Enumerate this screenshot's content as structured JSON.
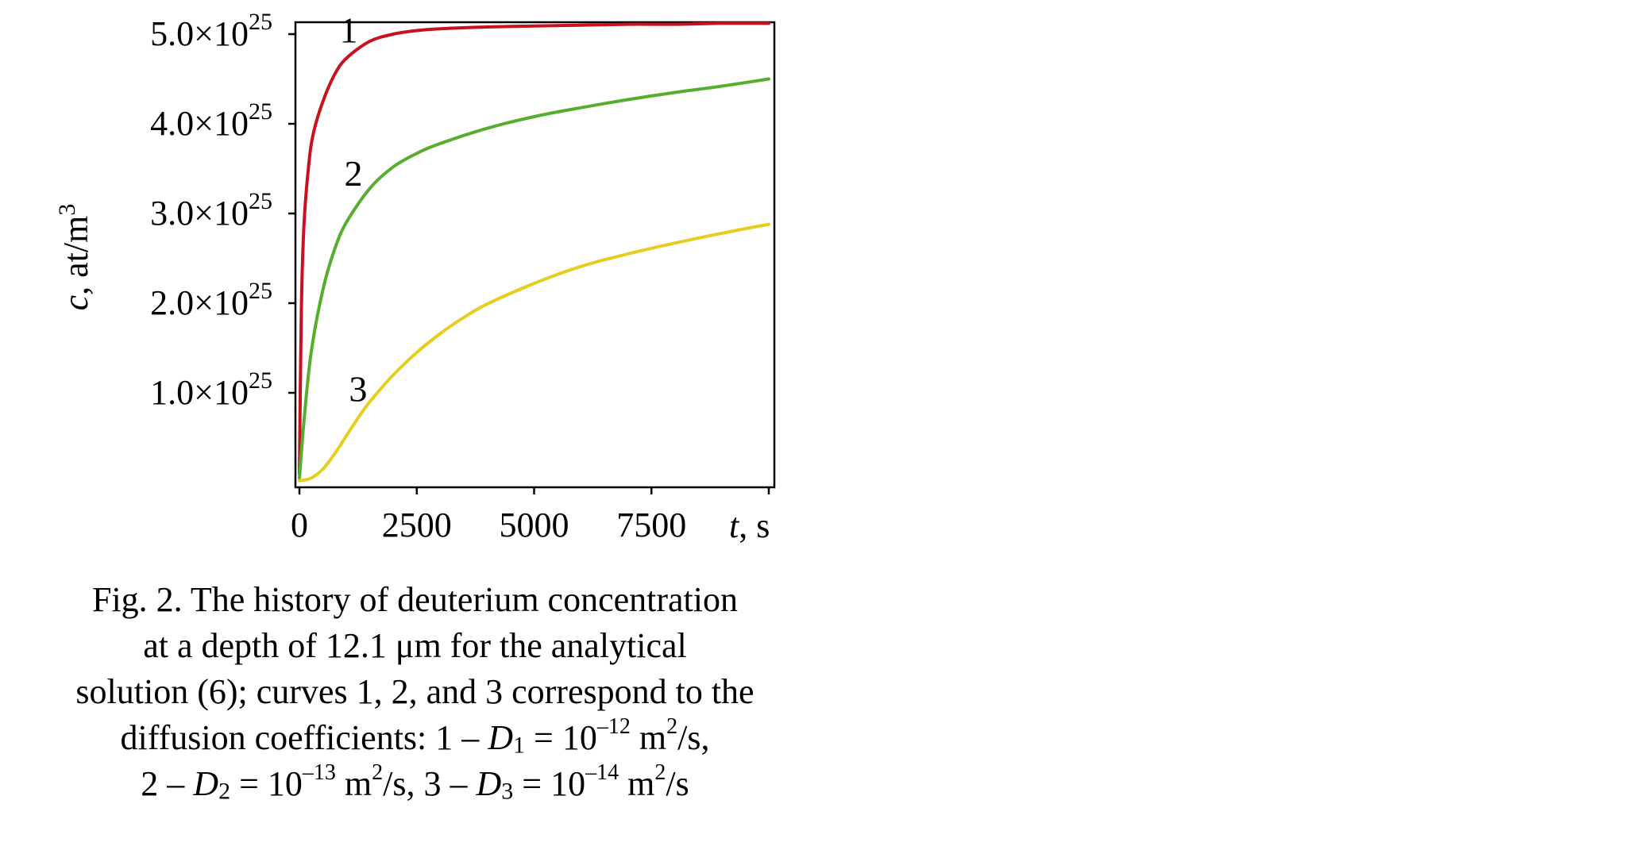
{
  "chart_data": {
    "type": "line",
    "ylabel": {
      "var": "c",
      "unit": ", at/m",
      "unit_exp": "3"
    },
    "xlabel": {
      "var": "t",
      "unit": ", s"
    },
    "xlim": [
      0,
      10000
    ],
    "ylim": [
      0,
      5e+25
    ],
    "x_ticks": [
      {
        "value": 0,
        "label": "0"
      },
      {
        "value": 2500,
        "label": "2500"
      },
      {
        "value": 5000,
        "label": "5000"
      },
      {
        "value": 7500,
        "label": "7500"
      },
      {
        "value": 10000,
        "label": ""
      }
    ],
    "y_ticks": [
      {
        "value": 1e+25,
        "mantissa": "1.0×10",
        "exp": "25"
      },
      {
        "value": 2e+25,
        "mantissa": "2.0×10",
        "exp": "25"
      },
      {
        "value": 3e+25,
        "mantissa": "3.0×10",
        "exp": "25"
      },
      {
        "value": 4e+25,
        "mantissa": "4.0×10",
        "exp": "25"
      },
      {
        "value": 5e+25,
        "mantissa": "5.0×10",
        "exp": "25"
      }
    ],
    "grid": false,
    "series": [
      {
        "name": "1",
        "color": "#c8121e",
        "x": [
          0,
          40,
          100,
          200,
          300,
          500,
          750,
          1000,
          1500,
          2000,
          2500,
          3000,
          4000,
          5000,
          6000,
          7000,
          8000,
          9000,
          10000
        ],
        "y": [
          1e+24,
          1.9e+25,
          2.9e+25,
          3.55e+25,
          3.9e+25,
          4.25e+25,
          4.55e+25,
          4.73e+25,
          4.92e+25,
          5e+25,
          5.04e+25,
          5.06e+25,
          5.08e+25,
          5.09e+25,
          5.1e+25,
          5.11e+25,
          5.11e+25,
          5.12e+25,
          5.12e+25
        ]
      },
      {
        "name": "2",
        "color": "#56ae2f",
        "x": [
          0,
          100,
          250,
          500,
          750,
          1000,
          1500,
          2000,
          2500,
          3000,
          4000,
          5000,
          6000,
          7000,
          8000,
          9000,
          10000
        ],
        "y": [
          5e+23,
          7e+24,
          1.45e+25,
          2.15e+25,
          2.6e+25,
          2.9e+25,
          3.28e+25,
          3.52e+25,
          3.67e+25,
          3.78e+25,
          3.95e+25,
          4.08e+25,
          4.18e+25,
          4.27e+25,
          4.35e+25,
          4.42e+25,
          4.5e+25
        ]
      },
      {
        "name": "3",
        "color": "#e6cd1e",
        "x": [
          0,
          250,
          500,
          750,
          1000,
          1250,
          1500,
          2000,
          2500,
          3000,
          3500,
          4000,
          5000,
          6000,
          7000,
          8000,
          9000,
          10000
        ],
        "y": [
          2e+23,
          5e+23,
          1.5e+24,
          3.2e+24,
          5.2e+24,
          7.2e+24,
          9e+24,
          1.2e+25,
          1.45e+25,
          1.66e+25,
          1.84e+25,
          1.99e+25,
          2.22e+25,
          2.41e+25,
          2.55e+25,
          2.67e+25,
          2.78e+25,
          2.88e+25
        ]
      }
    ],
    "annotations": [
      {
        "text": "1",
        "x": 1050,
        "y": 5.05e+25
      },
      {
        "text": "2",
        "x": 1150,
        "y": 3.45e+25
      },
      {
        "text": "3",
        "x": 1250,
        "y": 1.05e+25
      }
    ]
  },
  "caption": {
    "line1": "Fig. 2. The history of deuterium concentration",
    "line2": "at a depth of 12.1 μm for the analytical",
    "line3": "solution (6); curves 1, 2, and 3 correspond to the",
    "line4_a": "diffusion coefficients: 1 – ",
    "d_var": "D",
    "d1_sub": "1",
    "line4_b": " = 10",
    "exp_12": "–12",
    "unit_m": " m",
    "unit_m_exp": "2",
    "unit_s_comma": "/s,",
    "line5_a": "2 – ",
    "d2_sub": "2",
    "line5_b": " = 10",
    "exp_13": "–13",
    "line5_c": "/s, 3 – ",
    "d3_sub": "3",
    "line5_d": " = 10",
    "exp_14": "–14",
    "unit_s": "/s"
  }
}
